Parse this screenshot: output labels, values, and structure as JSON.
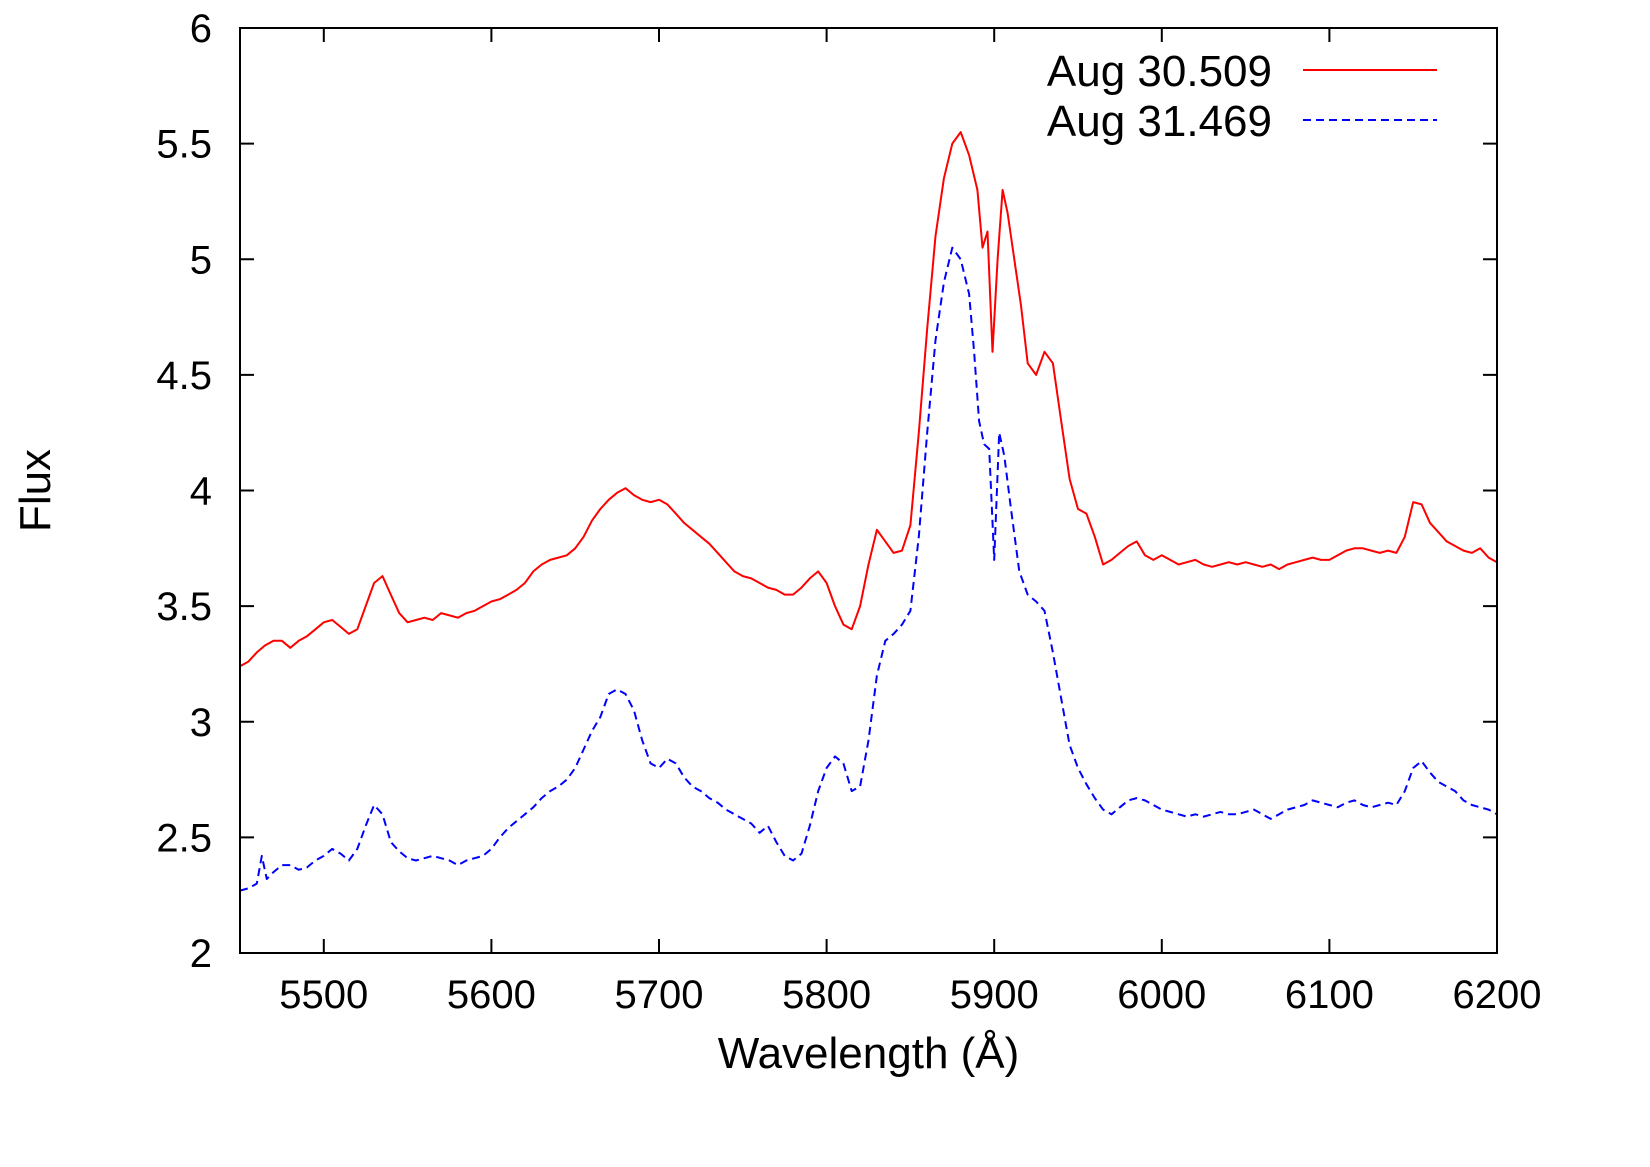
{
  "chart_data": {
    "type": "line",
    "xlabel": "Wavelength (Å)",
    "ylabel": "Flux",
    "xlim": [
      5450,
      6200
    ],
    "ylim": [
      2,
      6
    ],
    "xticks": [
      5500,
      5600,
      5700,
      5800,
      5900,
      6000,
      6100,
      6200
    ],
    "xtick_labels": [
      "5500",
      "5600",
      "5700",
      "5800",
      "5900",
      "6000",
      "6100",
      "6200"
    ],
    "yticks": [
      2,
      2.5,
      3,
      3.5,
      4,
      4.5,
      5,
      5.5,
      6
    ],
    "ytick_labels": [
      "2",
      "2.5",
      "3",
      "3.5",
      "4",
      "4.5",
      "5",
      "5.5",
      "6"
    ],
    "grid": false,
    "legend_position": "top-right",
    "series": [
      {
        "name": "Aug 30.509",
        "color": "#ff0000",
        "dash": "solid",
        "x": [
          5450,
          5455,
          5460,
          5465,
          5470,
          5475,
          5480,
          5485,
          5490,
          5495,
          5500,
          5505,
          5510,
          5515,
          5520,
          5525,
          5530,
          5535,
          5540,
          5545,
          5550,
          5555,
          5560,
          5565,
          5570,
          5575,
          5580,
          5585,
          5590,
          5595,
          5600,
          5605,
          5610,
          5615,
          5620,
          5625,
          5630,
          5635,
          5640,
          5645,
          5650,
          5655,
          5660,
          5665,
          5670,
          5675,
          5680,
          5685,
          5690,
          5695,
          5700,
          5705,
          5710,
          5715,
          5720,
          5725,
          5730,
          5735,
          5740,
          5745,
          5750,
          5755,
          5760,
          5765,
          5770,
          5775,
          5780,
          5785,
          5790,
          5795,
          5800,
          5805,
          5810,
          5815,
          5820,
          5825,
          5830,
          5835,
          5840,
          5845,
          5850,
          5855,
          5860,
          5865,
          5870,
          5875,
          5880,
          5885,
          5890,
          5893,
          5896,
          5899,
          5902,
          5905,
          5908,
          5912,
          5916,
          5920,
          5925,
          5930,
          5935,
          5940,
          5945,
          5950,
          5955,
          5960,
          5965,
          5970,
          5975,
          5980,
          5985,
          5990,
          5995,
          6000,
          6005,
          6010,
          6015,
          6020,
          6025,
          6030,
          6035,
          6040,
          6045,
          6050,
          6055,
          6060,
          6065,
          6070,
          6075,
          6080,
          6085,
          6090,
          6095,
          6100,
          6105,
          6110,
          6115,
          6120,
          6125,
          6130,
          6135,
          6140,
          6145,
          6150,
          6155,
          6160,
          6165,
          6170,
          6175,
          6180,
          6185,
          6190,
          6195,
          6200
        ],
        "y": [
          3.24,
          3.26,
          3.3,
          3.33,
          3.35,
          3.35,
          3.32,
          3.35,
          3.37,
          3.4,
          3.43,
          3.44,
          3.41,
          3.38,
          3.4,
          3.5,
          3.6,
          3.63,
          3.55,
          3.47,
          3.43,
          3.44,
          3.45,
          3.44,
          3.47,
          3.46,
          3.45,
          3.47,
          3.48,
          3.5,
          3.52,
          3.53,
          3.55,
          3.57,
          3.6,
          3.65,
          3.68,
          3.7,
          3.71,
          3.72,
          3.75,
          3.8,
          3.87,
          3.92,
          3.96,
          3.99,
          4.01,
          3.98,
          3.96,
          3.95,
          3.96,
          3.94,
          3.9,
          3.86,
          3.83,
          3.8,
          3.77,
          3.73,
          3.69,
          3.65,
          3.63,
          3.62,
          3.6,
          3.58,
          3.57,
          3.55,
          3.55,
          3.58,
          3.62,
          3.65,
          3.6,
          3.5,
          3.42,
          3.4,
          3.5,
          3.68,
          3.83,
          3.78,
          3.73,
          3.74,
          3.85,
          4.25,
          4.7,
          5.1,
          5.35,
          5.5,
          5.55,
          5.45,
          5.3,
          5.05,
          5.12,
          4.6,
          5.0,
          5.3,
          5.2,
          5.0,
          4.8,
          4.55,
          4.5,
          4.6,
          4.55,
          4.3,
          4.05,
          3.92,
          3.9,
          3.8,
          3.68,
          3.7,
          3.73,
          3.76,
          3.78,
          3.72,
          3.7,
          3.72,
          3.7,
          3.68,
          3.69,
          3.7,
          3.68,
          3.67,
          3.68,
          3.69,
          3.68,
          3.69,
          3.68,
          3.67,
          3.68,
          3.66,
          3.68,
          3.69,
          3.7,
          3.71,
          3.7,
          3.7,
          3.72,
          3.74,
          3.75,
          3.75,
          3.74,
          3.73,
          3.74,
          3.73,
          3.8,
          3.95,
          3.94,
          3.86,
          3.82,
          3.78,
          3.76,
          3.74,
          3.73,
          3.75,
          3.71,
          3.69
        ]
      },
      {
        "name": "Aug 31.469",
        "color": "#0000ff",
        "dash": "dashed",
        "x": [
          5450,
          5455,
          5460,
          5463,
          5466,
          5470,
          5475,
          5480,
          5485,
          5490,
          5495,
          5500,
          5505,
          5510,
          5515,
          5520,
          5525,
          5530,
          5535,
          5540,
          5545,
          5550,
          5555,
          5560,
          5565,
          5570,
          5575,
          5580,
          5585,
          5590,
          5595,
          5600,
          5605,
          5610,
          5615,
          5620,
          5625,
          5630,
          5635,
          5640,
          5645,
          5650,
          5655,
          5660,
          5665,
          5670,
          5675,
          5680,
          5685,
          5690,
          5695,
          5700,
          5705,
          5710,
          5715,
          5720,
          5725,
          5730,
          5735,
          5740,
          5745,
          5750,
          5755,
          5760,
          5765,
          5770,
          5775,
          5780,
          5785,
          5790,
          5795,
          5800,
          5805,
          5810,
          5815,
          5820,
          5825,
          5830,
          5835,
          5840,
          5845,
          5850,
          5855,
          5860,
          5865,
          5870,
          5875,
          5880,
          5885,
          5888,
          5891,
          5894,
          5897,
          5900,
          5903,
          5906,
          5910,
          5915,
          5920,
          5925,
          5930,
          5935,
          5940,
          5945,
          5950,
          5955,
          5960,
          5965,
          5970,
          5975,
          5980,
          5985,
          5990,
          5995,
          6000,
          6005,
          6010,
          6015,
          6020,
          6025,
          6030,
          6035,
          6040,
          6045,
          6050,
          6055,
          6060,
          6065,
          6070,
          6075,
          6080,
          6085,
          6090,
          6095,
          6100,
          6105,
          6110,
          6115,
          6120,
          6125,
          6130,
          6135,
          6140,
          6145,
          6150,
          6155,
          6160,
          6165,
          6170,
          6175,
          6180,
          6185,
          6190,
          6195,
          6200
        ],
        "y": [
          2.27,
          2.28,
          2.3,
          2.42,
          2.32,
          2.35,
          2.38,
          2.38,
          2.36,
          2.37,
          2.4,
          2.42,
          2.45,
          2.43,
          2.4,
          2.45,
          2.55,
          2.64,
          2.6,
          2.48,
          2.44,
          2.41,
          2.4,
          2.41,
          2.42,
          2.41,
          2.4,
          2.38,
          2.4,
          2.41,
          2.42,
          2.45,
          2.5,
          2.54,
          2.57,
          2.6,
          2.63,
          2.67,
          2.7,
          2.72,
          2.75,
          2.8,
          2.88,
          2.96,
          3.02,
          3.12,
          3.14,
          3.12,
          3.05,
          2.92,
          2.82,
          2.8,
          2.84,
          2.82,
          2.76,
          2.72,
          2.7,
          2.67,
          2.65,
          2.62,
          2.6,
          2.58,
          2.56,
          2.52,
          2.55,
          2.48,
          2.42,
          2.4,
          2.43,
          2.55,
          2.7,
          2.8,
          2.85,
          2.82,
          2.7,
          2.72,
          2.92,
          3.2,
          3.35,
          3.38,
          3.42,
          3.48,
          3.8,
          4.25,
          4.65,
          4.9,
          5.05,
          5.0,
          4.85,
          4.6,
          4.3,
          4.2,
          4.18,
          3.7,
          4.25,
          4.15,
          3.92,
          3.65,
          3.55,
          3.52,
          3.48,
          3.3,
          3.1,
          2.9,
          2.8,
          2.73,
          2.67,
          2.62,
          2.6,
          2.63,
          2.66,
          2.67,
          2.66,
          2.64,
          2.62,
          2.61,
          2.6,
          2.59,
          2.6,
          2.59,
          2.6,
          2.61,
          2.6,
          2.6,
          2.61,
          2.62,
          2.6,
          2.58,
          2.6,
          2.62,
          2.63,
          2.64,
          2.66,
          2.65,
          2.64,
          2.63,
          2.65,
          2.66,
          2.64,
          2.63,
          2.64,
          2.65,
          2.64,
          2.7,
          2.8,
          2.83,
          2.78,
          2.74,
          2.72,
          2.7,
          2.66,
          2.64,
          2.63,
          2.62,
          2.6
        ]
      }
    ]
  }
}
